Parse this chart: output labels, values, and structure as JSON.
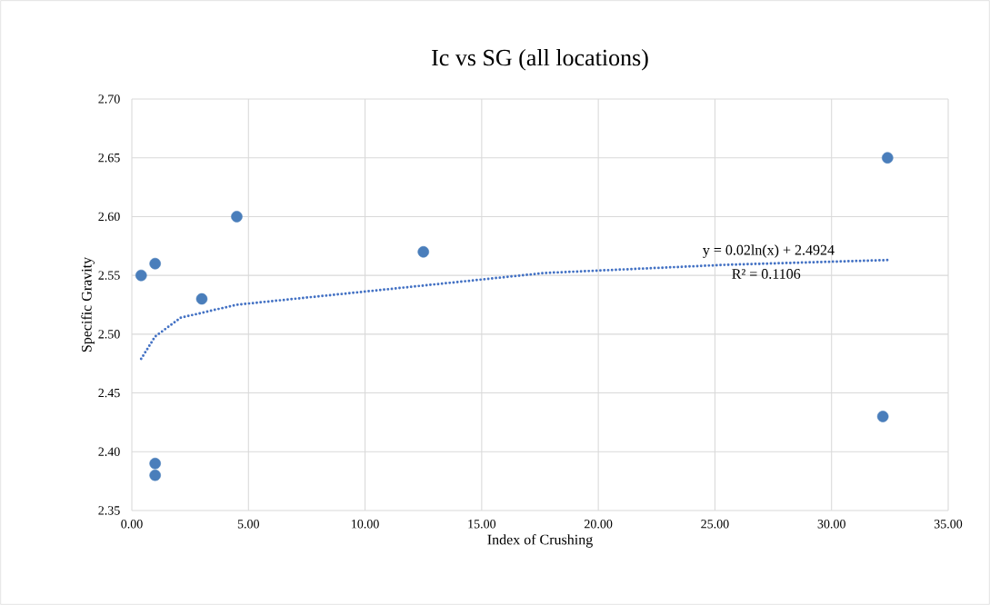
{
  "chart_data": {
    "type": "scatter",
    "title": "Ic vs SG (all locations)",
    "xlabel": "Index of Crushing",
    "ylabel": "Specific Gravity",
    "series": [
      {
        "color": "#4a7ebb",
        "marker": "circle",
        "x": [
          0.4,
          1.0,
          1.0,
          1.0,
          3.0,
          4.5,
          12.5,
          32.4,
          32.2
        ],
        "values": [
          2.55,
          2.56,
          2.39,
          2.38,
          2.53,
          2.6,
          2.57,
          2.65,
          2.43
        ]
      },
      {
        "type": "line",
        "color": "#4472c4",
        "line_style": "dotted",
        "marker": "none",
        "x": [
          0.4,
          1.0,
          2.1,
          4.5,
          9.9,
          17.7,
          25.5,
          32.4
        ],
        "values": [
          2.479,
          2.498,
          2.514,
          2.525,
          2.536,
          2.552,
          2.559,
          2.563
        ]
      }
    ],
    "xlim": [
      0,
      35
    ],
    "ylim": [
      2.35,
      2.7
    ],
    "xticks": [
      {
        "value": 0,
        "label": "0.00"
      },
      {
        "value": 5,
        "label": "5.00"
      },
      {
        "value": 10,
        "label": "10.00"
      },
      {
        "value": 15,
        "label": "15.00"
      },
      {
        "value": 20,
        "label": "20.00"
      },
      {
        "value": 25,
        "label": "25.00"
      },
      {
        "value": 30,
        "label": "30.00"
      },
      {
        "value": 35,
        "label": "35.00"
      }
    ],
    "yticks": [
      {
        "value": 2.35,
        "label": "2.35"
      },
      {
        "value": 2.4,
        "label": "2.40"
      },
      {
        "value": 2.45,
        "label": "2.45"
      },
      {
        "value": 2.5,
        "label": "2.50"
      },
      {
        "value": 2.55,
        "label": "2.55"
      },
      {
        "value": 2.6,
        "label": "2.60"
      },
      {
        "value": 2.65,
        "label": "2.65"
      },
      {
        "value": 2.7,
        "label": "2.70"
      }
    ],
    "grid": true,
    "annotations": [
      "y = 0.02ln(x) + 2.4924",
      "R² = 0.1106"
    ]
  }
}
